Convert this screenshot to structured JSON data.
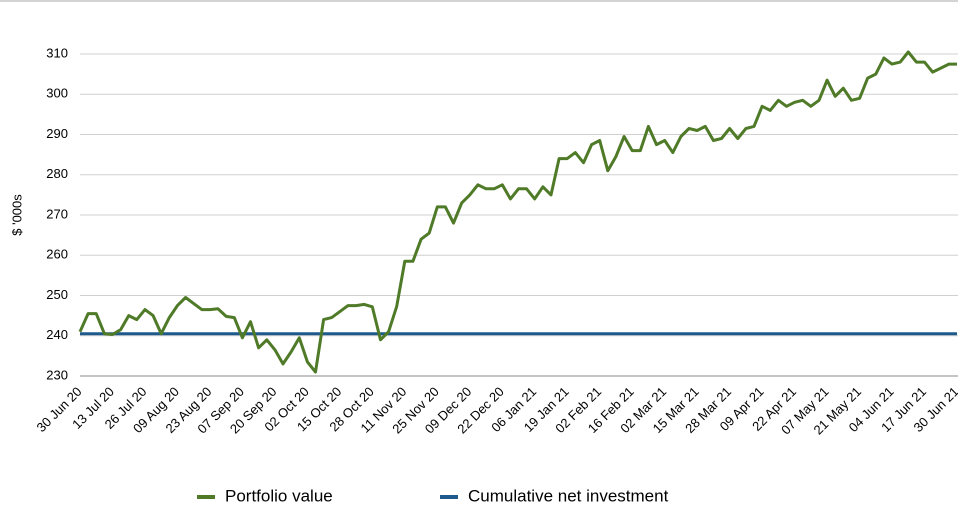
{
  "chart_data": {
    "type": "line",
    "ylabel": "$ '000s",
    "categories": [
      "30 Jun 20",
      null,
      null,
      null,
      "13 Jul 20",
      null,
      null,
      null,
      "26 Jul 20",
      null,
      null,
      null,
      "09 Aug 20",
      null,
      null,
      null,
      "23 Aug 20",
      null,
      null,
      null,
      "07 Sep 20",
      null,
      null,
      null,
      "20 Sep 20",
      null,
      null,
      null,
      "02 Oct 20",
      null,
      null,
      null,
      "15 Oct 20",
      null,
      null,
      null,
      "28 Oct 20",
      null,
      null,
      null,
      "11 Nov 20",
      null,
      null,
      null,
      "25 Nov 20",
      null,
      null,
      null,
      "09 Dec 20",
      null,
      null,
      null,
      "22 Dec 20",
      null,
      null,
      null,
      "06 Jan 21",
      null,
      null,
      null,
      "19 Jan 21",
      null,
      null,
      null,
      "02 Feb 21",
      null,
      null,
      null,
      "16 Feb 21",
      null,
      null,
      null,
      "02 Mar 21",
      null,
      null,
      null,
      "15 Mar 21",
      null,
      null,
      null,
      "28 Mar 21",
      null,
      null,
      null,
      "09 Apr 21",
      null,
      null,
      null,
      "22 Apr 21",
      null,
      null,
      null,
      "07 May 21",
      null,
      null,
      null,
      "21 May 21",
      null,
      null,
      null,
      "04 Jun 21",
      null,
      null,
      null,
      "17 Jun 21",
      null,
      null,
      null,
      "30 Jun 21"
    ],
    "series": [
      {
        "name": "Portfolio value",
        "color": "#4f7a28",
        "values": [
          241,
          245.5,
          245.5,
          240.5,
          240.3,
          241.5,
          245,
          244,
          246.5,
          245,
          240.5,
          244.5,
          247.5,
          249.5,
          248,
          246.5,
          246.5,
          246.7,
          244.8,
          244.5,
          239.5,
          243.5,
          237,
          239,
          236.5,
          233,
          236,
          239.5,
          233.5,
          231,
          244,
          244.5,
          246,
          247.5,
          247.5,
          247.8,
          247.2,
          239,
          241,
          247.3,
          258.5,
          258.5,
          264,
          265.5,
          272,
          272,
          268,
          273,
          275,
          277.5,
          276.5,
          276.5,
          277.5,
          274,
          276.5,
          276.5,
          274,
          277,
          275,
          284,
          284,
          285.5,
          283,
          287.5,
          288.5,
          281,
          284.5,
          289.5,
          286,
          286,
          292,
          287.5,
          288.5,
          285.5,
          289.5,
          291.5,
          291,
          292,
          288.5,
          289,
          291.5,
          289,
          291.5,
          292,
          297,
          296,
          298.5,
          297,
          298,
          298.5,
          297,
          298.5,
          303.5,
          299.5,
          301.5,
          298.5,
          299,
          304,
          305,
          309,
          307.5,
          308,
          310.5,
          308,
          308,
          305.5,
          306.5,
          307.5,
          307.5
        ]
      },
      {
        "name": "Cumulative net investment",
        "color": "#1f5a8c",
        "values": [
          240.5,
          240.5,
          240.5,
          240.5,
          240.5,
          240.5,
          240.5,
          240.5,
          240.5,
          240.5,
          240.5,
          240.5,
          240.5,
          240.5,
          240.5,
          240.5,
          240.5,
          240.5,
          240.5,
          240.5,
          240.5,
          240.5,
          240.5,
          240.5,
          240.5,
          240.5,
          240.5,
          240.5,
          240.5,
          240.5,
          240.5,
          240.5,
          240.5,
          240.5,
          240.5,
          240.5,
          240.5,
          240.5,
          240.5,
          240.5,
          240.5,
          240.5,
          240.5,
          240.5,
          240.5,
          240.5,
          240.5,
          240.5,
          240.5,
          240.5,
          240.5,
          240.5,
          240.5,
          240.5,
          240.5,
          240.5,
          240.5,
          240.5,
          240.5,
          240.5,
          240.5,
          240.5,
          240.5,
          240.5,
          240.5,
          240.5,
          240.5,
          240.5,
          240.5,
          240.5,
          240.5,
          240.5,
          240.5,
          240.5,
          240.5,
          240.5,
          240.5,
          240.5,
          240.5,
          240.5,
          240.5,
          240.5,
          240.5,
          240.5,
          240.5,
          240.5,
          240.5,
          240.5,
          240.5,
          240.5,
          240.5,
          240.5,
          240.5,
          240.5,
          240.5,
          240.5,
          240.5,
          240.5,
          240.5,
          240.5,
          240.5,
          240.5,
          240.5,
          240.5,
          240.5,
          240.5,
          240.5,
          240.5,
          240.5
        ]
      }
    ],
    "ylim": [
      230,
      310
    ],
    "yticks": [
      230,
      240,
      250,
      260,
      270,
      280,
      290,
      300,
      310
    ],
    "grid": true,
    "legend": "bottom"
  }
}
